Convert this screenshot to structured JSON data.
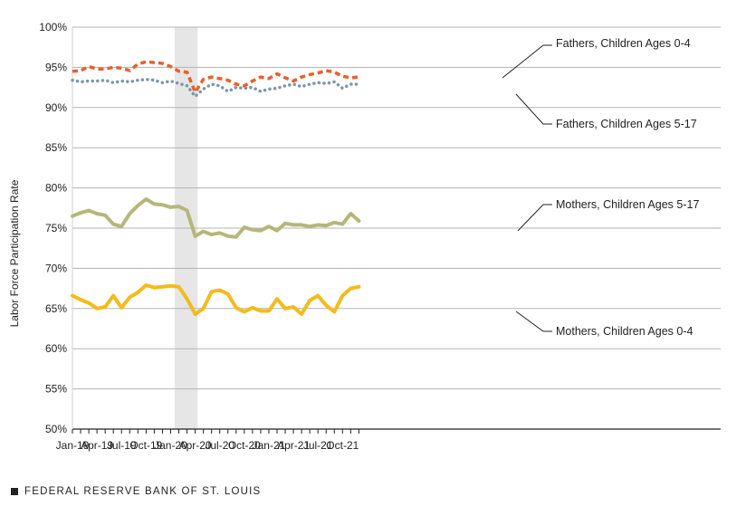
{
  "source": "FEDERAL RESERVE BANK OF ST. LOUIS",
  "chart_data": {
    "type": "line",
    "title": "",
    "xlabel": "",
    "ylabel": "Labor Force Participation Rate",
    "ylim": [
      50,
      100
    ],
    "yticks": [
      "50%",
      "55%",
      "60%",
      "65%",
      "70%",
      "75%",
      "80%",
      "85%",
      "90%",
      "95%",
      "100%"
    ],
    "ytick_values": [
      50,
      55,
      60,
      65,
      70,
      75,
      80,
      85,
      90,
      95,
      100
    ],
    "xticks": [
      "Jan-19",
      "Apr-19",
      "Jul-19",
      "Oct-19",
      "Jan-20",
      "Apr-20",
      "Jul-20",
      "Oct-20",
      "Jan-21",
      "Apr-21",
      "Jul-21",
      "Oct-21"
    ],
    "xtick_index": [
      0,
      3,
      6,
      9,
      12,
      15,
      18,
      21,
      24,
      27,
      30,
      33
    ],
    "n_months": 36,
    "recession": {
      "start_index": 12.5,
      "end_index": 15.3
    },
    "grid": true,
    "series": [
      {
        "name": "Fathers, Children Ages 0-4",
        "color": "#e8602c",
        "style": "dashed",
        "values": [
          94.5,
          94.6,
          95.1,
          94.8,
          94.8,
          95.0,
          94.9,
          94.6,
          95.4,
          95.7,
          95.6,
          95.5,
          95.1,
          94.5,
          94.4,
          91.9,
          93.5,
          93.8,
          93.6,
          93.4,
          92.9,
          92.7,
          93.3,
          93.8,
          93.6,
          94.2,
          93.7,
          93.3,
          93.8,
          94.1,
          94.3,
          94.6,
          94.4,
          93.9,
          93.7,
          93.8
        ]
      },
      {
        "name": "Fathers, Children Ages 5-17",
        "color": "#7d97a8",
        "style": "dotted",
        "values": [
          93.4,
          93.2,
          93.3,
          93.3,
          93.4,
          93.1,
          93.3,
          93.2,
          93.4,
          93.5,
          93.4,
          93.1,
          93.3,
          93.0,
          92.7,
          91.4,
          92.3,
          92.9,
          92.7,
          92.0,
          92.5,
          92.4,
          92.5,
          92.0,
          92.3,
          92.4,
          92.7,
          92.9,
          92.6,
          92.9,
          93.1,
          93.0,
          93.2,
          92.4,
          92.9,
          92.9
        ]
      },
      {
        "name": "Mothers, Children Ages 5-17",
        "color": "#b5b77a",
        "style": "solid",
        "values": [
          76.5,
          76.9,
          77.2,
          76.8,
          76.6,
          75.5,
          75.2,
          76.8,
          77.8,
          78.6,
          78.0,
          77.9,
          77.6,
          77.7,
          77.2,
          74.0,
          74.6,
          74.2,
          74.4,
          74.0,
          73.9,
          75.1,
          74.8,
          74.7,
          75.2,
          74.7,
          75.6,
          75.4,
          75.4,
          75.2,
          75.4,
          75.3,
          75.7,
          75.5,
          76.8,
          75.9
        ]
      },
      {
        "name": "Mothers, Children Ages 0-4",
        "color": "#f3bb1c",
        "style": "solid",
        "values": [
          66.6,
          66.1,
          65.7,
          65.0,
          65.2,
          66.6,
          65.1,
          66.4,
          67.0,
          67.9,
          67.6,
          67.7,
          67.8,
          67.7,
          66.2,
          64.3,
          65.0,
          67.1,
          67.3,
          66.8,
          65.1,
          64.6,
          65.1,
          64.7,
          64.7,
          66.2,
          65.0,
          65.2,
          64.3,
          66.0,
          66.6,
          65.4,
          64.6,
          66.6,
          67.5,
          67.7
        ]
      }
    ],
    "annotations": [
      {
        "text": "Fathers, Children Ages 0-4",
        "series": 0
      },
      {
        "text": "Fathers, Children Ages 5-17",
        "series": 1
      },
      {
        "text": "Mothers, Children Ages 5-17",
        "series": 2
      },
      {
        "text": "Mothers, Children Ages 0-4",
        "series": 3
      }
    ]
  }
}
